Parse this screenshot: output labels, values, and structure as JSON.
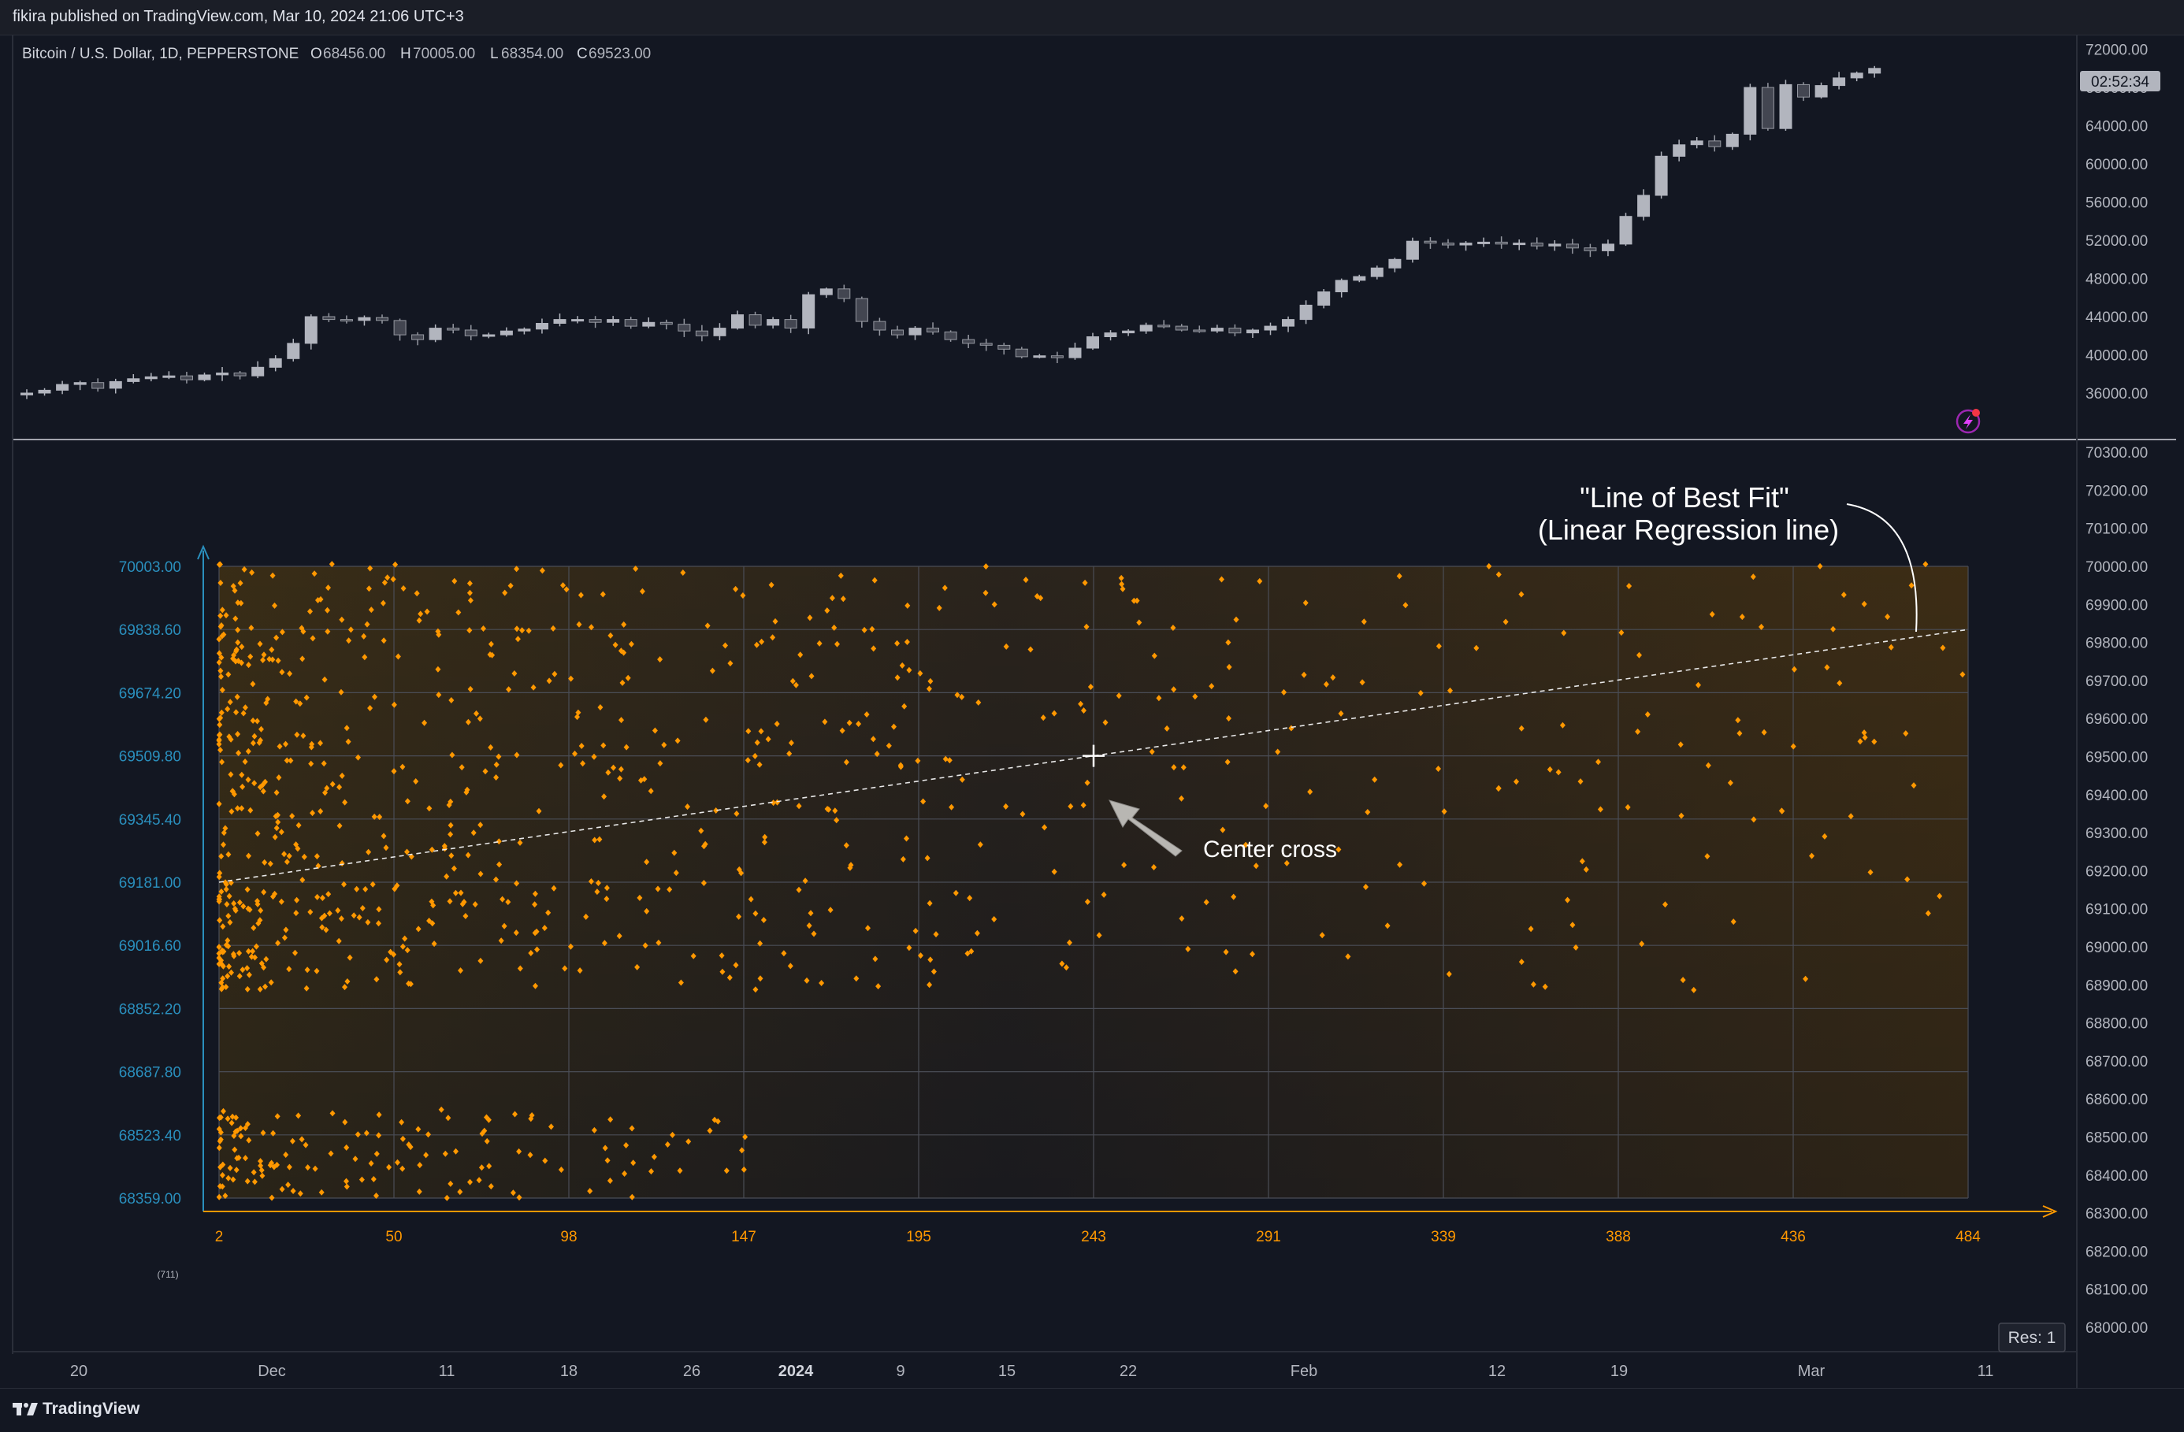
{
  "header": {
    "publish_line": "fikira published on TradingView.com, Mar 10, 2024 21:06 UTC+3"
  },
  "symbol": {
    "name": "Bitcoin / U.S. Dollar, 1D, PEPPERSTONE",
    "o_label": "O",
    "o_value": "68456.00",
    "h_label": "H",
    "h_value": "70005.00",
    "l_label": "L",
    "l_value": "68354.00",
    "c_label": "C",
    "c_value": "69523.00"
  },
  "price_axis_top": {
    "ticks": [
      "72000.00",
      "68000.00",
      "64000.00",
      "60000.00",
      "56000.00",
      "52000.00",
      "48000.00",
      "44000.00",
      "40000.00",
      "36000.00"
    ],
    "countdown": "02:52:34"
  },
  "price_axis_bottom": {
    "ticks": [
      "70300.00",
      "70200.00",
      "70100.00",
      "70000.00",
      "69900.00",
      "69800.00",
      "69700.00",
      "69600.00",
      "69500.00",
      "69400.00",
      "69300.00",
      "69200.00",
      "69100.00",
      "69000.00",
      "68900.00",
      "68800.00",
      "68700.00",
      "68600.00",
      "68500.00",
      "68400.00",
      "68300.00",
      "68200.00",
      "68100.00",
      "68000.00"
    ]
  },
  "time_axis": {
    "labels": [
      "20",
      "Dec",
      "11",
      "18",
      "26",
      "2024",
      "9",
      "15",
      "22",
      "Feb",
      "12",
      "19",
      "Mar",
      "11"
    ]
  },
  "colors": {
    "background": "#131722",
    "candle_up": "#b2b5be",
    "candle_down": "#434651",
    "scatter_dot": "#ff9800",
    "y_axis_labels": "#2a8fbd",
    "x_axis_labels": "#ff9800"
  },
  "chart_data": [
    {
      "type": "candlestick",
      "title": "Bitcoin / U.S. Dollar, 1D, PEPPERSTONE",
      "y_range": [
        34000,
        73000
      ],
      "closes": [
        36000,
        36300,
        36900,
        37100,
        36500,
        37200,
        37500,
        37700,
        37800,
        37400,
        37900,
        38100,
        37800,
        38700,
        39600,
        41200,
        44000,
        43700,
        43600,
        43900,
        43600,
        42100,
        41600,
        42800,
        42600,
        42000,
        42100,
        42500,
        42700,
        43300,
        43700,
        43700,
        43400,
        43700,
        43000,
        43400,
        43200,
        42500,
        42000,
        42800,
        44200,
        43100,
        43700,
        42800,
        46300,
        46900,
        45900,
        43500,
        42600,
        42100,
        42800,
        42400,
        41600,
        41200,
        41000,
        40600,
        39800,
        39900,
        39700,
        40700,
        41900,
        42300,
        42500,
        43100,
        43000,
        42600,
        42500,
        42800,
        42300,
        42600,
        43000,
        43700,
        45200,
        46600,
        47800,
        48200,
        49100,
        50000,
        51900,
        51700,
        51500,
        51700,
        51800,
        51600,
        51700,
        51400,
        51600,
        51200,
        50900,
        51600,
        54500,
        56700,
        60800,
        62000,
        62400,
        61800,
        63100,
        68000,
        63700,
        68300,
        67000,
        68200,
        69000,
        69500,
        70000
      ]
    },
    {
      "type": "scatter",
      "x_label_ticks": [
        "2",
        "50",
        "98",
        "147",
        "195",
        "243",
        "291",
        "339",
        "388",
        "436",
        "484"
      ],
      "y_label_ticks": [
        "70003.00",
        "69838.60",
        "69674.20",
        "69509.80",
        "69345.40",
        "69181.00",
        "69016.60",
        "68852.20",
        "68687.80",
        "68523.40",
        "68359.00"
      ],
      "xlim": [
        2,
        484
      ],
      "ylim": [
        68359.0,
        70003.0
      ],
      "bottom_left_note": "(711)",
      "regression": {
        "y_at_start": 69181.0,
        "y_at_end": 69838.6
      },
      "center_cross": {
        "x": 243,
        "y": 69509.8
      }
    }
  ],
  "annotations": {
    "best_fit_line1": "\"Line of Best Fit\"",
    "best_fit_line2": "(Linear Regression line)",
    "center_cross_label": "Center cross"
  },
  "res_badge": "Res: 1",
  "footer": {
    "brand": "TradingView"
  }
}
